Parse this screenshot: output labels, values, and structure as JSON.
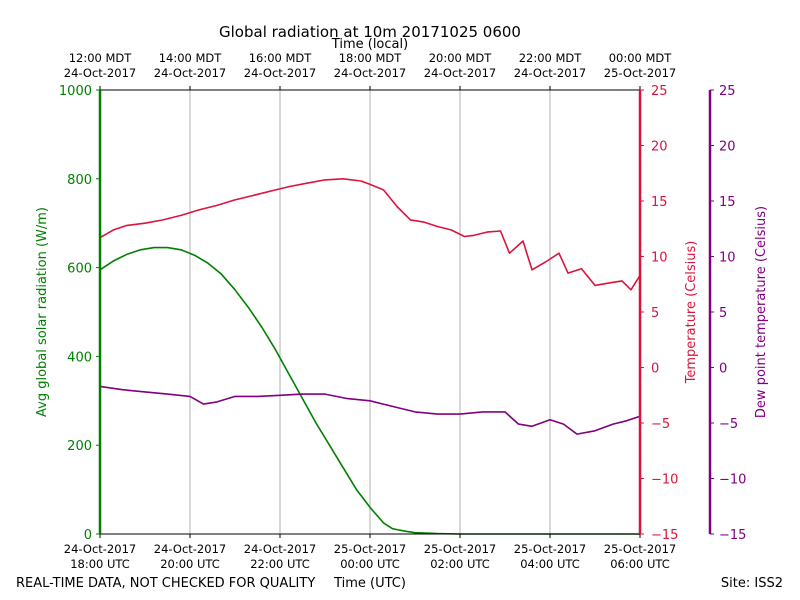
{
  "colors": {
    "radiation": "#008000",
    "temperature": "#dc143c",
    "dewpoint": "#800080",
    "grid": "#b0b0b0",
    "axis": "#000000"
  },
  "footer": {
    "disclaimer": "REAL-TIME DATA, NOT CHECKED FOR QUALITY",
    "site": "Site: ISS2"
  },
  "chart_data": {
    "type": "line",
    "title": "Global radiation at 10m 20171025 0600",
    "xlabel_bottom": "Time (UTC)",
    "xlabel_top": "Time (local)",
    "x_unit": "hours since 24-Oct-2017 18:00 UTC",
    "xlim": [
      0,
      12
    ],
    "bottom_ticks": [
      {
        "x": 0,
        "l1": "24-Oct-2017",
        "l2": "18:00 UTC"
      },
      {
        "x": 2,
        "l1": "24-Oct-2017",
        "l2": "20:00 UTC"
      },
      {
        "x": 4,
        "l1": "24-Oct-2017",
        "l2": "22:00 UTC"
      },
      {
        "x": 6,
        "l1": "25-Oct-2017",
        "l2": "00:00 UTC"
      },
      {
        "x": 8,
        "l1": "25-Oct-2017",
        "l2": "02:00 UTC"
      },
      {
        "x": 10,
        "l1": "25-Oct-2017",
        "l2": "04:00 UTC"
      },
      {
        "x": 12,
        "l1": "25-Oct-2017",
        "l2": "06:00 UTC"
      }
    ],
    "top_ticks": [
      {
        "x": 0,
        "l1": "12:00 MDT",
        "l2": "24-Oct-2017"
      },
      {
        "x": 2,
        "l1": "14:00 MDT",
        "l2": "24-Oct-2017"
      },
      {
        "x": 4,
        "l1": "16:00 MDT",
        "l2": "24-Oct-2017"
      },
      {
        "x": 6,
        "l1": "18:00 MDT",
        "l2": "24-Oct-2017"
      },
      {
        "x": 8,
        "l1": "20:00 MDT",
        "l2": "24-Oct-2017"
      },
      {
        "x": 10,
        "l1": "22:00 MDT",
        "l2": "24-Oct-2017"
      },
      {
        "x": 12,
        "l1": "00:00 MDT",
        "l2": "25-Oct-2017"
      }
    ],
    "axes": {
      "radiation": {
        "label": "Avg global solar radiation (W/m)",
        "ylim": [
          0,
          1000
        ],
        "ticks": [
          0,
          200,
          400,
          600,
          800,
          1000
        ]
      },
      "temperature": {
        "label": "Temperature (Celsius)",
        "ylim": [
          -15,
          25
        ],
        "ticks": [
          -15,
          -10,
          -5,
          0,
          5,
          10,
          15,
          20,
          25
        ]
      },
      "dewpoint": {
        "label": "Dew point temperature (Celsius)",
        "ylim": [
          -15,
          25
        ],
        "ticks": [
          -15,
          -10,
          -5,
          0,
          5,
          10,
          15,
          20,
          25
        ]
      }
    },
    "tick_display": {
      "-15": "−15",
      "-10": "−10",
      "-5": "−5",
      "0": "0",
      "5": "5",
      "10": "10",
      "15": "15",
      "20": "20",
      "25": "25"
    },
    "series": [
      {
        "name": "Avg global solar radiation",
        "axis": "radiation",
        "color_key": "radiation",
        "gaps": [
          [
            3.1,
            3.2
          ],
          [
            4.2,
            4.35
          ],
          [
            5.7,
            5.8
          ]
        ],
        "x": [
          0,
          0.3,
          0.6,
          0.9,
          1.2,
          1.5,
          1.8,
          2.1,
          2.4,
          2.7,
          3.0,
          3.3,
          3.6,
          3.9,
          4.2,
          4.5,
          4.8,
          5.1,
          5.4,
          5.7,
          6.0,
          6.3,
          6.5,
          6.6,
          6.8,
          7.0,
          7.5,
          8,
          9,
          10,
          11,
          12
        ],
        "values": [
          595,
          615,
          630,
          640,
          645,
          645,
          640,
          628,
          610,
          585,
          550,
          510,
          465,
          415,
          360,
          305,
          250,
          200,
          150,
          100,
          60,
          25,
          12,
          10,
          6,
          3,
          1,
          0,
          0,
          0,
          0,
          0
        ]
      },
      {
        "name": "Temperature",
        "axis": "temperature",
        "color_key": "temperature",
        "x": [
          0,
          0.3,
          0.6,
          1.0,
          1.4,
          1.8,
          2.2,
          2.6,
          3.0,
          3.4,
          3.8,
          4.2,
          4.6,
          5.0,
          5.4,
          5.8,
          6.0,
          6.3,
          6.6,
          6.9,
          7.2,
          7.5,
          7.8,
          8.1,
          8.3,
          8.6,
          8.9,
          9.1,
          9.4,
          9.6,
          9.9,
          10.2,
          10.4,
          10.7,
          11.0,
          11.3,
          11.6,
          11.8,
          12.0
        ],
        "values": [
          11.7,
          12.4,
          12.8,
          13.0,
          13.3,
          13.7,
          14.2,
          14.6,
          15.1,
          15.5,
          15.9,
          16.3,
          16.6,
          16.9,
          17.0,
          16.8,
          16.5,
          16.0,
          14.5,
          13.3,
          13.1,
          12.7,
          12.4,
          11.8,
          11.9,
          12.2,
          12.3,
          10.3,
          11.4,
          8.8,
          9.5,
          10.3,
          8.5,
          8.9,
          7.4,
          7.6,
          7.8,
          7.0,
          8.3
        ]
      },
      {
        "name": "Dew point temperature",
        "axis": "dewpoint",
        "color_key": "dewpoint",
        "x": [
          0,
          0.5,
          1.0,
          1.5,
          2.0,
          2.3,
          2.6,
          3.0,
          3.5,
          4.0,
          4.5,
          5.0,
          5.5,
          6.0,
          6.5,
          7.0,
          7.5,
          8.0,
          8.5,
          9.0,
          9.3,
          9.6,
          10.0,
          10.3,
          10.6,
          11.0,
          11.4,
          11.7,
          12.0
        ],
        "values": [
          -1.7,
          -2.0,
          -2.2,
          -2.4,
          -2.6,
          -3.3,
          -3.1,
          -2.6,
          -2.6,
          -2.5,
          -2.4,
          -2.4,
          -2.8,
          -3.0,
          -3.5,
          -4.0,
          -4.2,
          -4.2,
          -4.0,
          -4.0,
          -5.1,
          -5.3,
          -4.7,
          -5.1,
          -6.0,
          -5.7,
          -5.1,
          -4.8,
          -4.4
        ]
      }
    ]
  }
}
